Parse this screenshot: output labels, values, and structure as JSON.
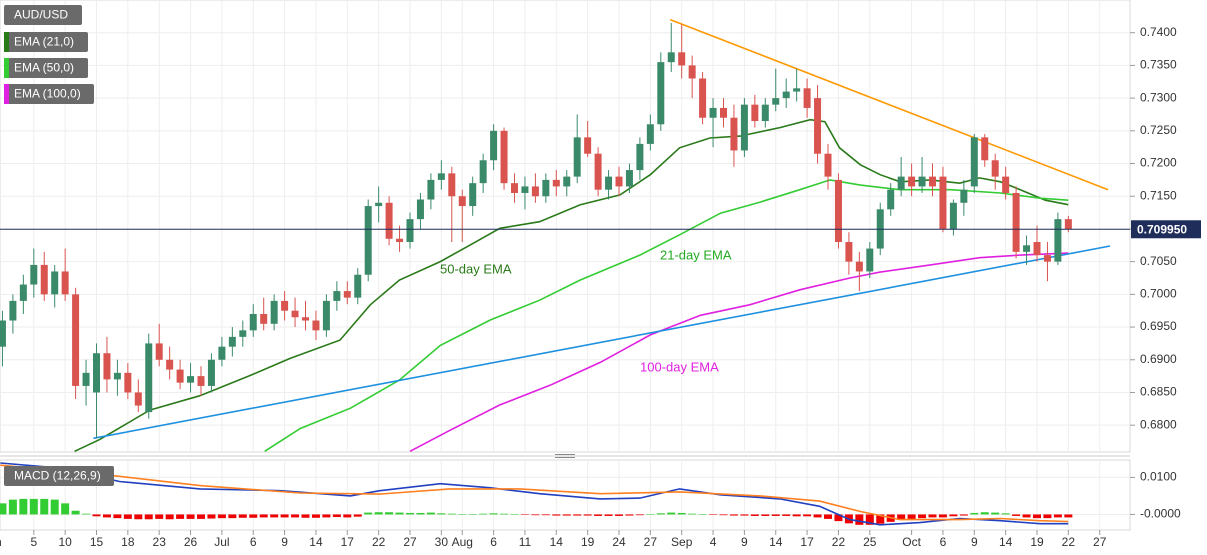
{
  "chart_data": [
    {
      "type": "candlestick",
      "title": "AUD/USD",
      "categories": [
        "Jun",
        null,
        null,
        null,
        "5",
        null,
        null,
        "10",
        null,
        null,
        "15",
        null,
        null,
        "18",
        null,
        null,
        "23",
        null,
        null,
        "26",
        null,
        null,
        "Jul",
        null,
        null,
        "6",
        null,
        null,
        "9",
        null,
        null,
        "14",
        null,
        null,
        "17",
        null,
        null,
        "22",
        null,
        null,
        "27",
        null,
        null,
        "30",
        null,
        "Aug",
        null,
        null,
        "6",
        null,
        null,
        "11",
        null,
        null,
        "14",
        null,
        null,
        "19",
        null,
        null,
        "24",
        null,
        null,
        "27",
        null,
        null,
        "Sep",
        null,
        null,
        "4",
        null,
        null,
        "9",
        null,
        null,
        "14",
        null,
        null,
        "17",
        null,
        null,
        "22",
        null,
        null,
        "25",
        null,
        null,
        null,
        "Oct",
        null,
        null,
        "6",
        null,
        null,
        "9",
        null,
        null,
        "14",
        null,
        null,
        "19",
        null,
        null,
        "22",
        null,
        null,
        "27"
      ],
      "open": [
        0.685,
        0.692,
        0.696,
        0.699,
        0.7015,
        0.7045,
        0.7,
        0.7035,
        0.7,
        0.686,
        0.685,
        0.691,
        0.687,
        0.688,
        0.685,
        0.682,
        0.6925,
        0.69,
        0.6885,
        0.6865,
        0.6875,
        0.686,
        0.69,
        0.692,
        0.6935,
        0.6945,
        0.697,
        0.6955,
        0.699,
        0.6975,
        0.6965,
        0.696,
        0.6945,
        0.699,
        0.7005,
        0.6995,
        0.703,
        0.7135,
        0.714,
        0.7085,
        0.708,
        0.7115,
        0.7145,
        0.7175,
        0.7185,
        0.715,
        0.7135,
        0.717,
        0.7205,
        0.725,
        0.717,
        0.7155,
        0.7165,
        0.715,
        0.7175,
        0.7165,
        0.718,
        0.724,
        0.7215,
        0.716,
        0.718,
        0.7165,
        0.719,
        0.723,
        0.726,
        0.7355,
        0.737,
        0.735,
        0.733,
        0.727,
        0.7285,
        0.727,
        0.722,
        0.729,
        0.7265,
        0.729,
        0.73,
        0.731,
        0.7315,
        0.73,
        0.7215,
        0.7175,
        0.708,
        0.705,
        0.7035,
        0.707,
        0.713,
        0.716,
        0.718,
        0.7165,
        0.718,
        0.718,
        0.71,
        0.714,
        0.7165,
        0.724,
        0.7205,
        0.718,
        0.7155,
        0.7065,
        0.708,
        0.706,
        0.705,
        0.7115,
        null,
        null,
        null
      ],
      "high": [
        0.6935,
        0.6975,
        0.7,
        0.703,
        0.707,
        0.7065,
        0.7045,
        0.707,
        0.701,
        0.69,
        0.6925,
        0.6935,
        0.69,
        0.6895,
        0.687,
        0.694,
        0.6955,
        0.692,
        0.69,
        0.6895,
        0.689,
        0.691,
        0.6935,
        0.695,
        0.696,
        0.6985,
        0.6995,
        0.7,
        0.7005,
        0.6995,
        0.699,
        0.6975,
        0.7,
        0.702,
        0.702,
        0.704,
        0.7145,
        0.7165,
        0.715,
        0.7105,
        0.7125,
        0.7155,
        0.7185,
        0.7205,
        0.7195,
        0.716,
        0.718,
        0.7215,
        0.726,
        0.7255,
        0.7185,
        0.718,
        0.7185,
        0.7185,
        0.719,
        0.719,
        0.7275,
        0.7265,
        0.7225,
        0.719,
        0.7195,
        0.72,
        0.724,
        0.7275,
        0.737,
        0.7415,
        0.7413,
        0.7365,
        0.734,
        0.73,
        0.73,
        0.729,
        0.73,
        0.7305,
        0.73,
        0.7345,
        0.733,
        0.7345,
        0.733,
        0.732,
        0.723,
        0.7185,
        0.7095,
        0.7065,
        0.708,
        0.714,
        0.717,
        0.721,
        0.72,
        0.721,
        0.72,
        0.7195,
        0.7145,
        0.7175,
        0.7245,
        0.7245,
        0.7215,
        0.7195,
        0.7165,
        0.709,
        0.7105,
        0.708,
        0.7125,
        0.712,
        null,
        null,
        null
      ],
      "low": [
        0.678,
        0.689,
        0.694,
        0.697,
        0.6995,
        0.699,
        0.698,
        0.699,
        0.684,
        0.683,
        0.678,
        0.685,
        0.6845,
        0.684,
        0.682,
        0.681,
        0.689,
        0.687,
        0.6855,
        0.685,
        0.6845,
        0.685,
        0.689,
        0.6905,
        0.692,
        0.6935,
        0.6945,
        0.6945,
        0.696,
        0.695,
        0.6945,
        0.693,
        0.6935,
        0.6975,
        0.6985,
        0.6985,
        0.702,
        0.711,
        0.7075,
        0.7065,
        0.707,
        0.71,
        0.713,
        0.716,
        0.708,
        0.708,
        0.712,
        0.7155,
        0.719,
        0.716,
        0.714,
        0.713,
        0.714,
        0.714,
        0.715,
        0.715,
        0.717,
        0.721,
        0.715,
        0.7145,
        0.715,
        0.7155,
        0.7175,
        0.722,
        0.725,
        0.734,
        0.733,
        0.73,
        0.726,
        0.7225,
        0.7255,
        0.7195,
        0.721,
        0.7255,
        0.7255,
        0.728,
        0.7285,
        0.7295,
        0.727,
        0.72,
        0.716,
        0.707,
        0.703,
        0.7005,
        0.7025,
        0.706,
        0.712,
        0.715,
        0.715,
        0.7155,
        0.715,
        0.7095,
        0.709,
        0.712,
        0.7155,
        0.7195,
        0.716,
        0.7145,
        0.7055,
        0.7045,
        0.705,
        0.702,
        0.7045,
        0.7095,
        null,
        null,
        null
      ],
      "close": [
        0.692,
        0.696,
        0.699,
        0.7015,
        0.7045,
        0.7,
        0.7035,
        0.7,
        0.686,
        0.688,
        0.691,
        0.687,
        0.688,
        0.685,
        0.683,
        0.6925,
        0.69,
        0.6885,
        0.6865,
        0.6875,
        0.686,
        0.69,
        0.692,
        0.6935,
        0.6945,
        0.697,
        0.6955,
        0.699,
        0.6975,
        0.6965,
        0.696,
        0.6945,
        0.699,
        0.7005,
        0.6995,
        0.703,
        0.7135,
        0.714,
        0.7085,
        0.708,
        0.7115,
        0.7145,
        0.7175,
        0.7185,
        0.715,
        0.7135,
        0.717,
        0.7205,
        0.725,
        0.717,
        0.7155,
        0.7165,
        0.715,
        0.7175,
        0.7165,
        0.718,
        0.724,
        0.7215,
        0.716,
        0.718,
        0.7165,
        0.719,
        0.723,
        0.726,
        0.7355,
        0.737,
        0.735,
        0.733,
        0.727,
        0.7285,
        0.727,
        0.722,
        0.729,
        0.7265,
        0.729,
        0.73,
        0.731,
        0.7315,
        0.7285,
        0.7215,
        0.718,
        0.708,
        0.705,
        0.7035,
        0.707,
        0.713,
        0.716,
        0.718,
        0.7165,
        0.718,
        0.7165,
        0.71,
        0.714,
        0.716,
        0.724,
        0.7205,
        0.718,
        0.7155,
        0.7065,
        0.7075,
        0.706,
        0.705,
        0.7115,
        0.71,
        null,
        null,
        null
      ],
      "up_color": "#3a8a6a",
      "down_color": "#d9534f",
      "series": [
        {
          "name": "EMA (21,0)",
          "color": "#2a7a1a",
          "x": [
            7.9,
            10.3,
            15.1,
            19.9,
            24.7,
            28.5,
            33.3,
            36.2,
            39.0,
            42.9,
            45.7,
            48.6,
            52.4,
            56.3,
            60.1,
            63.0,
            65.8,
            68.7,
            71.6,
            75.4,
            78.3,
            79.7,
            81.1,
            83.1,
            85.0,
            86.9,
            89.8,
            92.6,
            94.5,
            96.5,
            98.4,
            100.8,
            103.0
          ],
          "values": [
            0.676,
            0.6778,
            0.6823,
            0.6845,
            0.6876,
            0.6902,
            0.693,
            0.6984,
            0.7022,
            0.705,
            0.7075,
            0.7101,
            0.7111,
            0.7137,
            0.7152,
            0.7183,
            0.7224,
            0.7239,
            0.7242,
            0.7255,
            0.7267,
            0.7264,
            0.7224,
            0.7198,
            0.7183,
            0.7172,
            0.7175,
            0.717,
            0.7178,
            0.7172,
            0.716,
            0.7144,
            0.7137
          ]
        },
        {
          "name": "EMA (50,0)",
          "color": "#33cc33",
          "x": [
            26.1,
            29.5,
            34.3,
            39.0,
            42.9,
            47.7,
            52.4,
            56.3,
            62.0,
            65.8,
            69.7,
            73.5,
            77.3,
            80.2,
            83.1,
            86.9,
            91.7,
            96.5,
            100.3,
            103.0
          ],
          "values": [
            0.676,
            0.6795,
            0.6826,
            0.6869,
            0.6922,
            0.6961,
            0.6991,
            0.7022,
            0.706,
            0.7091,
            0.7124,
            0.7141,
            0.716,
            0.7175,
            0.7167,
            0.716,
            0.716,
            0.7155,
            0.7147,
            0.7144
          ]
        },
        {
          "name": "EMA (100,0)",
          "color": "#e020e0",
          "x": [
            40.0,
            43.8,
            48.6,
            53.4,
            58.2,
            63.0,
            67.8,
            72.5,
            77.3,
            82.1,
            85.0,
            89.8,
            94.5,
            98.4,
            103.0
          ],
          "values": [
            0.676,
            0.6792,
            0.6831,
            0.6861,
            0.6896,
            0.6938,
            0.6968,
            0.6984,
            0.7007,
            0.7025,
            0.7034,
            0.7045,
            0.7056,
            0.706,
            0.7063
          ]
        }
      ],
      "trendlines": [
        {
          "color": "#ff9900",
          "x": [
            64.9,
            106.8
          ],
          "values": [
            0.742,
            0.716
          ]
        },
        {
          "color": "#1e90e0",
          "x": [
            9.7,
            107.0
          ],
          "values": [
            0.678,
            0.7074
          ]
        }
      ],
      "annotations": [
        {
          "text": "50-day EMA",
          "color": "#2a7a1a"
        },
        {
          "text": "21-day EMA",
          "color": "#22aa22"
        },
        {
          "text": "100-day EMA",
          "color": "#e020e0"
        }
      ],
      "last_price": {
        "value": 0.70995,
        "label": "0.709950",
        "color": "#1f2d5a"
      },
      "ylim": [
        0.6759,
        0.745
      ],
      "yticks": [
        {
          "value": 0.68,
          "label": "0.6800"
        },
        {
          "value": 0.685,
          "label": "0.6850"
        },
        {
          "value": 0.69,
          "label": "0.6900"
        },
        {
          "value": 0.695,
          "label": "0.6950"
        },
        {
          "value": 0.7,
          "label": "0.7000"
        },
        {
          "value": 0.705,
          "label": "0.7050"
        },
        {
          "value": 0.71,
          "label": "0.7100"
        },
        {
          "value": 0.715,
          "label": "0.7150"
        },
        {
          "value": 0.72,
          "label": "0.7200"
        },
        {
          "value": 0.725,
          "label": "0.7250"
        },
        {
          "value": 0.73,
          "label": "0.7300"
        },
        {
          "value": 0.735,
          "label": "0.7350"
        },
        {
          "value": 0.74,
          "label": "0.7400"
        }
      ],
      "grid": true
    },
    {
      "type": "macd",
      "title": "MACD (12,26,9)",
      "histogram": [
        0.002,
        0.003,
        0.004,
        0.0042,
        0.0042,
        0.0042,
        0.004,
        0.003,
        0.001,
        0.0002,
        -0.0005,
        -0.0008,
        -0.001,
        -0.0012,
        -0.0013,
        -0.0013,
        -0.0012,
        -0.0013,
        -0.0012,
        -0.0012,
        -0.0012,
        -0.0011,
        -0.001,
        -0.001,
        -0.0009,
        -0.0009,
        -0.0008,
        -0.0008,
        -0.0008,
        -0.0008,
        -0.0009,
        -0.0009,
        -0.0008,
        -0.0007,
        -0.0008,
        -0.0006,
        0.0005,
        0.0006,
        0.0006,
        0.0005,
        0.0004,
        0.0004,
        0.0005,
        0.0003,
        0.0002,
        0.0001,
        0.0001,
        0.0002,
        0.0003,
        0.0002,
        0.0001,
        -0.0001,
        -0.0002,
        -0.0002,
        -0.0003,
        -0.0003,
        -0.0003,
        -0.0003,
        -0.0004,
        -0.0004,
        -0.0004,
        -0.0003,
        -0.0002,
        0,
        0.0003,
        0.0005,
        0.0004,
        0.0002,
        0.0001,
        -0.0001,
        -0.0002,
        -0.0003,
        -0.0003,
        -0.0004,
        -0.0004,
        -0.0004,
        -0.0004,
        -0.0005,
        -0.0005,
        -0.0008,
        -0.0012,
        -0.0018,
        -0.0024,
        -0.0028,
        -0.0028,
        -0.0025,
        -0.002,
        -0.0015,
        -0.0012,
        -0.001,
        -0.0008,
        -0.0008,
        -0.0005,
        -0.0003,
        0.0004,
        0.0006,
        0.0005,
        0.0003,
        -0.0004,
        -0.0008,
        -0.001,
        -0.001,
        -0.0008,
        -0.0008,
        null,
        null,
        null
      ],
      "up_color": "#33cc33",
      "down_color": "#ee0000",
      "series": [
        {
          "color": "#2040c0",
          "x": [
            0.8,
            6.5,
            12.2,
            19.9,
            27.6,
            34.3,
            37.1,
            42.9,
            47.7,
            52.4,
            58.2,
            62.0,
            65.8,
            69.7,
            75.4,
            79.2,
            82.1,
            85.0,
            88.8,
            92.6,
            96.5,
            100.3,
            103.0
          ],
          "values": [
            0.0139,
            0.0125,
            0.0089,
            0.0069,
            0.0064,
            0.005,
            0.0064,
            0.0083,
            0.0072,
            0.0056,
            0.0042,
            0.0044,
            0.0069,
            0.0053,
            0.0042,
            0.0022,
            -0.0014,
            -0.0028,
            -0.0022,
            -0.0011,
            -0.0017,
            -0.0025,
            -0.0025
          ]
        },
        {
          "color": "#ff8020",
          "x": [
            0.8,
            12.2,
            19.9,
            29.5,
            37.1,
            43.8,
            50.5,
            58.2,
            65.8,
            73.5,
            79.2,
            83.1,
            86.9,
            92.6,
            96.5,
            100.3,
            103.0
          ],
          "values": [
            0.0133,
            0.0103,
            0.0078,
            0.0058,
            0.0055,
            0.0069,
            0.0069,
            0.0056,
            0.0061,
            0.005,
            0.0036,
            0.0008,
            -0.0014,
            -0.0014,
            -0.0011,
            -0.0017,
            -0.0019
          ]
        }
      ],
      "ylim": [
        -0.0042,
        0.0147
      ],
      "yticks": [
        {
          "value": 0.01,
          "label": "0.0100"
        },
        {
          "value": 0,
          "label": "-0.0000"
        }
      ],
      "grid": true
    }
  ]
}
